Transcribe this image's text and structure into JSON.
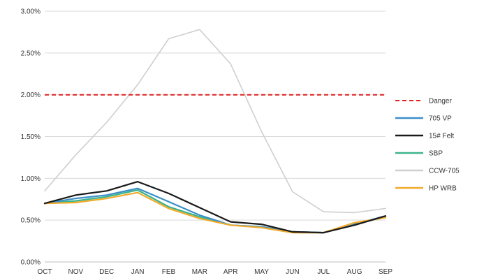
{
  "chart_data": {
    "type": "line",
    "categories": [
      "OCT",
      "NOV",
      "DEC",
      "JAN",
      "FEB",
      "MAR",
      "APR",
      "MAY",
      "JUN",
      "JUL",
      "AUG",
      "SEP"
    ],
    "y_ticks": [
      "0.00%",
      "0.50%",
      "1.00%",
      "1.50%",
      "2.00%",
      "2.50%",
      "3.00%"
    ],
    "ylim": [
      0,
      3
    ],
    "y_unit": "%",
    "grid": true,
    "legend_position": "right",
    "series": [
      {
        "name": "Danger",
        "color": "#e02020",
        "dash": true,
        "values": [
          2.0,
          2.0,
          2.0,
          2.0,
          2.0,
          2.0,
          2.0,
          2.0,
          2.0,
          2.0,
          2.0,
          2.0
        ]
      },
      {
        "name": "705 VP",
        "color": "#3a8fc8",
        "dash": false,
        "values": [
          0.7,
          0.76,
          0.8,
          0.88,
          0.72,
          0.56,
          0.44,
          0.42,
          0.36,
          0.35,
          0.45,
          0.55
        ]
      },
      {
        "name": "15# Felt",
        "color": "#1a1a1a",
        "dash": false,
        "values": [
          0.7,
          0.8,
          0.85,
          0.96,
          0.82,
          0.65,
          0.48,
          0.45,
          0.36,
          0.35,
          0.44,
          0.55
        ]
      },
      {
        "name": "SBP",
        "color": "#3cb38a",
        "dash": false,
        "values": [
          0.7,
          0.73,
          0.78,
          0.86,
          0.66,
          0.54,
          0.44,
          0.42,
          0.36,
          0.35,
          0.45,
          0.54
        ]
      },
      {
        "name": "CCW-705",
        "color": "#cfcfcf",
        "dash": false,
        "values": [
          0.85,
          1.28,
          1.67,
          2.12,
          2.67,
          2.78,
          2.37,
          1.56,
          0.84,
          0.6,
          0.59,
          0.64
        ]
      },
      {
        "name": "HP WRB",
        "color": "#f0aa2a",
        "dash": false,
        "values": [
          0.7,
          0.71,
          0.76,
          0.83,
          0.64,
          0.52,
          0.44,
          0.41,
          0.35,
          0.35,
          0.47,
          0.53
        ]
      }
    ]
  }
}
